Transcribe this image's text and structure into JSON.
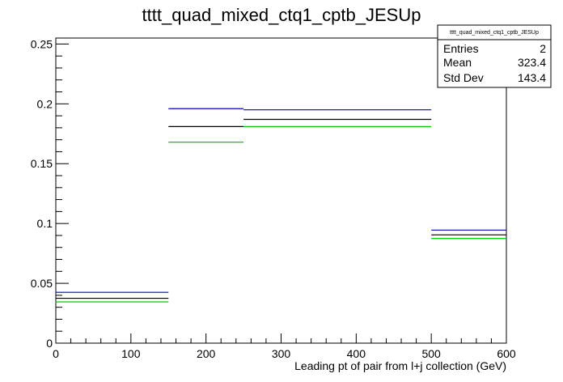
{
  "chart_data": {
    "type": "step",
    "title": "tttt_quad_mixed_ctq1_cptb_JESUp",
    "xlabel": "Leading pt of pair from l+j collection (GeV)",
    "ylabel": "",
    "xlim": [
      0,
      600
    ],
    "ylim": [
      0,
      0.255
    ],
    "x_ticks": [
      0,
      100,
      200,
      300,
      400,
      500,
      600
    ],
    "x_tick_labels": [
      "0",
      "100",
      "200",
      "300",
      "400",
      "500",
      "600"
    ],
    "y_ticks": [
      0,
      0.05,
      0.1,
      0.15,
      0.2,
      0.25
    ],
    "y_tick_labels": [
      "0",
      "0.05",
      "0.1",
      "0.15",
      "0.2",
      "0.25"
    ],
    "bin_edges": [
      0,
      150,
      250,
      500,
      600
    ],
    "series": [
      {
        "color": "#0000cc",
        "values": [
          0.0425,
          0.196,
          0.195,
          0.0945
        ]
      },
      {
        "color": "#000000",
        "values": [
          0.0375,
          0.181,
          0.187,
          0.0905
        ]
      },
      {
        "color": "#00cc00",
        "values": [
          0.0345,
          0.168,
          0.181,
          0.0875
        ]
      }
    ],
    "stats_box": {
      "title": "tttt_quad_mixed_ctq1_cptb_JESUp",
      "rows": [
        {
          "label": "Entries",
          "value": "2"
        },
        {
          "label": "Mean",
          "value": "323.4"
        },
        {
          "label": "Std Dev",
          "value": "143.4"
        }
      ]
    },
    "grid": false,
    "legend": "none"
  }
}
